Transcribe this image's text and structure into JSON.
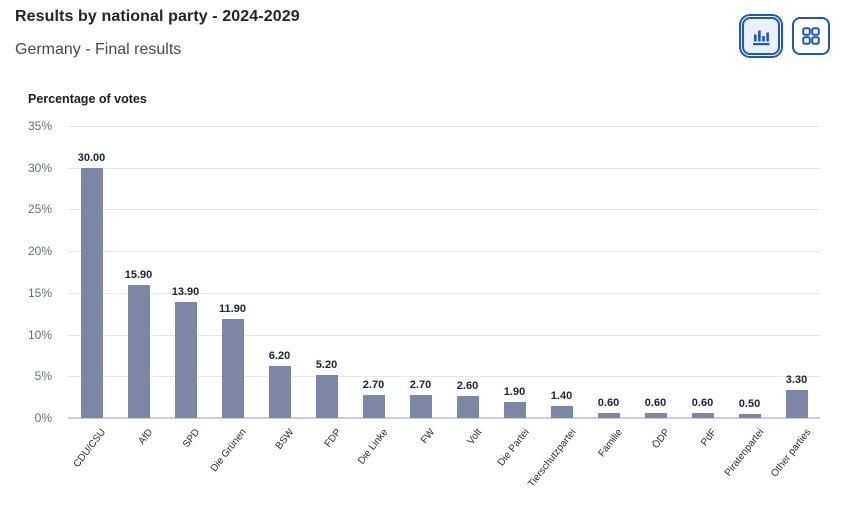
{
  "header": {
    "title": "Results by national party - 2024-2029",
    "subtitle": "Germany - Final results"
  },
  "view_toggle": {
    "chart_view_icon": "bar-chart-icon",
    "grid_view_icon": "grid-icon",
    "selected_view": "bar-chart"
  },
  "chart_data": {
    "type": "bar",
    "title": "Percentage of votes",
    "categories": [
      "CDU/CSU",
      "AfD",
      "SPD",
      "Die Grünen",
      "BSW",
      "FDP",
      "Die Linke",
      "FW",
      "Volt",
      "Die Partei",
      "Tierschutzpartei",
      "Familie",
      "ÖDP",
      "PdF",
      "Piratenpartei",
      "Other parties"
    ],
    "values": [
      30.0,
      15.9,
      13.9,
      11.9,
      6.2,
      5.2,
      2.7,
      2.7,
      2.6,
      1.9,
      1.4,
      0.6,
      0.6,
      0.6,
      0.5,
      3.3
    ],
    "value_labels": [
      "30.00",
      "15.90",
      "13.90",
      "11.90",
      "6.20",
      "5.20",
      "2.70",
      "2.70",
      "2.60",
      "1.90",
      "1.40",
      "0.60",
      "0.60",
      "0.60",
      "0.50",
      "3.30"
    ],
    "xlabel": "",
    "ylabel": "Percentage of votes",
    "y_ticks": [
      "35%",
      "30%",
      "25%",
      "20%",
      "15%",
      "10%",
      "5%",
      "0%"
    ],
    "ylim": [
      0,
      35
    ],
    "grid": true,
    "legend_position": "none"
  },
  "colors": {
    "accent_blue": "#1b57c2",
    "selected_button_bg": "#e9f2fc",
    "bar": "#7c87a5",
    "gridline": "#e7e7e7",
    "baseline": "#c9cfe3"
  }
}
